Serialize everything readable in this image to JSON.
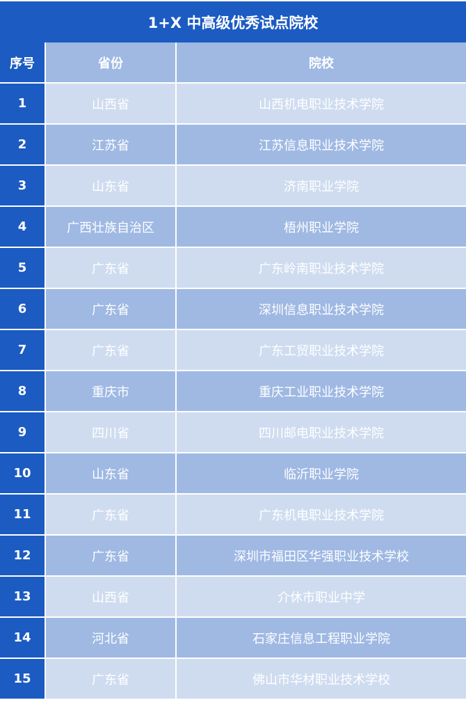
{
  "title": "1+X 中高级优秀试点院校",
  "headers": [
    "序号",
    "省份",
    "院校"
  ],
  "colors": {
    "dark": "#1c5bc1",
    "light_row": "#cfdcf0",
    "mid_row": "#9fb9e3"
  },
  "rows": [
    {
      "no": "1",
      "province": "山西省",
      "school": "山西机电职业技术学院"
    },
    {
      "no": "2",
      "province": "江苏省",
      "school": "江苏信息职业技术学院"
    },
    {
      "no": "3",
      "province": "山东省",
      "school": "济南职业学院"
    },
    {
      "no": "4",
      "province": "广西壮族自治区",
      "school": "梧州职业学院"
    },
    {
      "no": "5",
      "province": "广东省",
      "school": "广东岭南职业技术学院"
    },
    {
      "no": "6",
      "province": "广东省",
      "school": "深圳信息职业技术学院"
    },
    {
      "no": "7",
      "province": "广东省",
      "school": "广东工贸职业技术学院"
    },
    {
      "no": "8",
      "province": "重庆市",
      "school": "重庆工业职业技术学院"
    },
    {
      "no": "9",
      "province": "四川省",
      "school": "四川邮电职业技术学院"
    },
    {
      "no": "10",
      "province": "山东省",
      "school": "临沂职业学院"
    },
    {
      "no": "11",
      "province": "广东省",
      "school": "广东机电职业技术学院"
    },
    {
      "no": "12",
      "province": "广东省",
      "school": "深圳市福田区华强职业技术学校"
    },
    {
      "no": "13",
      "province": "山西省",
      "school": "介休市职业中学"
    },
    {
      "no": "14",
      "province": "河北省",
      "school": "石家庄信息工程职业学院"
    },
    {
      "no": "15",
      "province": "广东省",
      "school": "佛山市华材职业技术学校"
    }
  ]
}
